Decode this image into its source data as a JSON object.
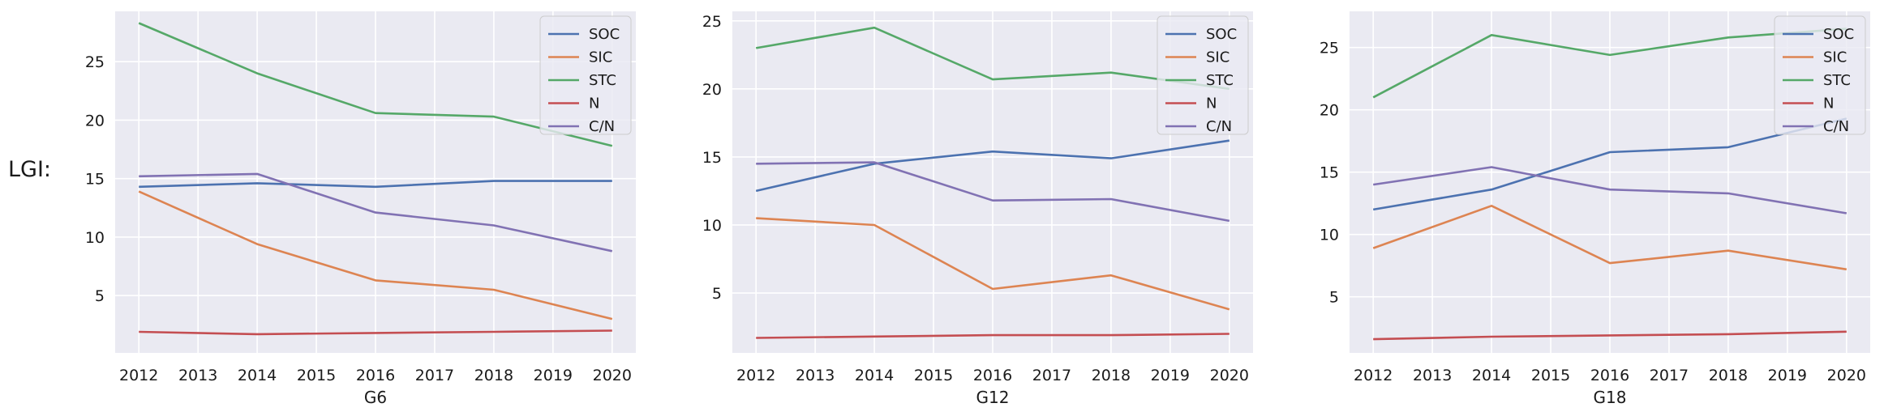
{
  "row_label": "LGI:",
  "colors": {
    "SOC": "#4c72b0",
    "SIC": "#dd8452",
    "STC": "#55a868",
    "N": "#c44e52",
    "C/N": "#8172b3",
    "plot_bg": "#eaeaf2",
    "grid": "#ffffff"
  },
  "chart_data": [
    {
      "type": "line",
      "xlabel": "G6",
      "ylabel": "",
      "title": "",
      "x": [
        2012,
        2014,
        2016,
        2018,
        2020
      ],
      "xticks": [
        "2012",
        "2013",
        "2014",
        "2015",
        "2016",
        "2017",
        "2018",
        "2019",
        "2020"
      ],
      "xlim": [
        2011.6,
        2020.4
      ],
      "yticks": [
        "5",
        "10",
        "15",
        "20",
        "25"
      ],
      "ylim": [
        0.1,
        29.3
      ],
      "legend": "top-right",
      "series": [
        {
          "name": "SOC",
          "values": [
            14.3,
            14.6,
            14.3,
            14.8,
            14.8
          ]
        },
        {
          "name": "SIC",
          "values": [
            13.9,
            9.4,
            6.3,
            5.5,
            3.0
          ]
        },
        {
          "name": "STC",
          "values": [
            28.3,
            24.0,
            20.6,
            20.3,
            17.8
          ]
        },
        {
          "name": "N",
          "values": [
            1.9,
            1.7,
            1.8,
            1.9,
            2.0
          ]
        },
        {
          "name": "C/N",
          "values": [
            15.2,
            15.4,
            12.1,
            11.0,
            8.8
          ]
        }
      ]
    },
    {
      "type": "line",
      "xlabel": "G12",
      "ylabel": "",
      "title": "",
      "x": [
        2012,
        2014,
        2016,
        2018,
        2020
      ],
      "xticks": [
        "2012",
        "2013",
        "2014",
        "2015",
        "2016",
        "2017",
        "2018",
        "2019",
        "2020"
      ],
      "xlim": [
        2011.6,
        2020.4
      ],
      "yticks": [
        "5",
        "10",
        "15",
        "20",
        "25"
      ],
      "ylim": [
        0.6,
        25.7
      ],
      "legend": "top-right",
      "series": [
        {
          "name": "SOC",
          "values": [
            12.5,
            14.5,
            15.4,
            14.9,
            16.2
          ]
        },
        {
          "name": "SIC",
          "values": [
            10.5,
            10.0,
            5.3,
            6.3,
            3.8
          ]
        },
        {
          "name": "STC",
          "values": [
            23.0,
            24.5,
            20.7,
            21.2,
            20.0
          ]
        },
        {
          "name": "N",
          "values": [
            1.7,
            1.8,
            1.9,
            1.9,
            2.0
          ]
        },
        {
          "name": "C/N",
          "values": [
            14.5,
            14.6,
            11.8,
            11.9,
            10.3
          ]
        }
      ]
    },
    {
      "type": "line",
      "xlabel": "G18",
      "ylabel": "",
      "title": "",
      "x": [
        2012,
        2014,
        2016,
        2018,
        2020
      ],
      "xticks": [
        "2012",
        "2013",
        "2014",
        "2015",
        "2016",
        "2017",
        "2018",
        "2019",
        "2020"
      ],
      "xlim": [
        2011.6,
        2020.4
      ],
      "yticks": [
        "5",
        "10",
        "15",
        "20",
        "25"
      ],
      "ylim": [
        0.5,
        27.9
      ],
      "legend": "top-right",
      "series": [
        {
          "name": "SOC",
          "values": [
            12.0,
            13.6,
            16.6,
            17.0,
            19.3
          ]
        },
        {
          "name": "SIC",
          "values": [
            8.9,
            12.3,
            7.7,
            8.7,
            7.2
          ]
        },
        {
          "name": "STC",
          "values": [
            21.0,
            26.0,
            24.4,
            25.8,
            26.5
          ]
        },
        {
          "name": "N",
          "values": [
            1.6,
            1.8,
            1.9,
            2.0,
            2.2
          ]
        },
        {
          "name": "C/N",
          "values": [
            14.0,
            15.4,
            13.6,
            13.3,
            11.7
          ]
        }
      ]
    }
  ]
}
